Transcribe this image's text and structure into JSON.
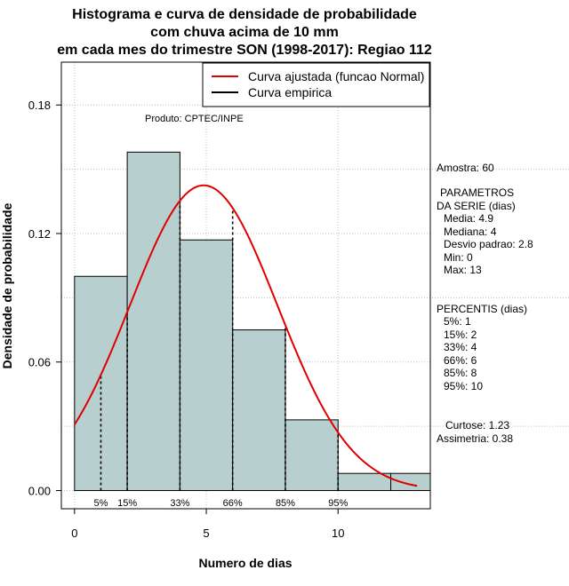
{
  "chart_data": {
    "type": "histogram",
    "title": [
      "Histograma e curva de densidade de probabilidade",
      "com chuva acima de 10 mm",
      "em cada mes do trimestre SON (1998-2017): Regiao 112"
    ],
    "xlabel": "Numero de dias",
    "ylabel": "Densidade de probabilidade",
    "xlim": [
      -0.5,
      13.5
    ],
    "ylim": [
      -0.0085,
      0.2
    ],
    "xticks": [
      0,
      5,
      10
    ],
    "yticks": [
      0.0,
      0.06,
      0.12,
      0.18
    ],
    "ytick_labels": [
      "0.00",
      "0.06",
      "0.12",
      "0.18"
    ],
    "bins": [
      {
        "start": 0,
        "end": 2,
        "density": 0.1
      },
      {
        "start": 2,
        "end": 4,
        "density": 0.158
      },
      {
        "start": 4,
        "end": 6,
        "density": 0.117
      },
      {
        "start": 6,
        "end": 8,
        "density": 0.075
      },
      {
        "start": 8,
        "end": 10,
        "density": 0.033
      },
      {
        "start": 10,
        "end": 12,
        "density": 0.008
      },
      {
        "start": 12,
        "end": 14,
        "density": 0.008
      }
    ],
    "fitted_curve": {
      "name": "Curva ajustada (funcao Normal)",
      "mean": 4.9,
      "sd": 2.8,
      "x_range": [
        0,
        13
      ],
      "color": "#e00000"
    },
    "empirical_curve": {
      "name": "Curva empirica",
      "color": "#000000"
    },
    "percentile_lines": [
      {
        "label": "5%",
        "x": 1
      },
      {
        "label": "15%",
        "x": 2
      },
      {
        "label": "33%",
        "x": 4
      },
      {
        "label": "66%",
        "x": 6
      },
      {
        "label": "85%",
        "x": 8
      },
      {
        "label": "95%",
        "x": 10
      }
    ],
    "legend_placement": "top-right",
    "grid": true,
    "bar_color": "#b8cfcf"
  },
  "product_label": "Produto: CPTEC/INPE",
  "side_panel": {
    "sample": "Amostra: 60",
    "params_title_1": "PARAMETROS",
    "params_title_2": "DA SERIE (dias)",
    "params": [
      "Media: 4.9",
      "Mediana: 4",
      "Desvio padrao: 2.8",
      "Min: 0",
      "Max: 13"
    ],
    "percentis_title": "PERCENTIS (dias)",
    "percentis": [
      "5%: 1",
      "15%: 2",
      "33%: 4",
      "66%: 6",
      "85%: 8",
      "95%: 10"
    ],
    "kurtosis": "Curtose: 1.23",
    "skewness": "Assimetria: 0.38"
  }
}
